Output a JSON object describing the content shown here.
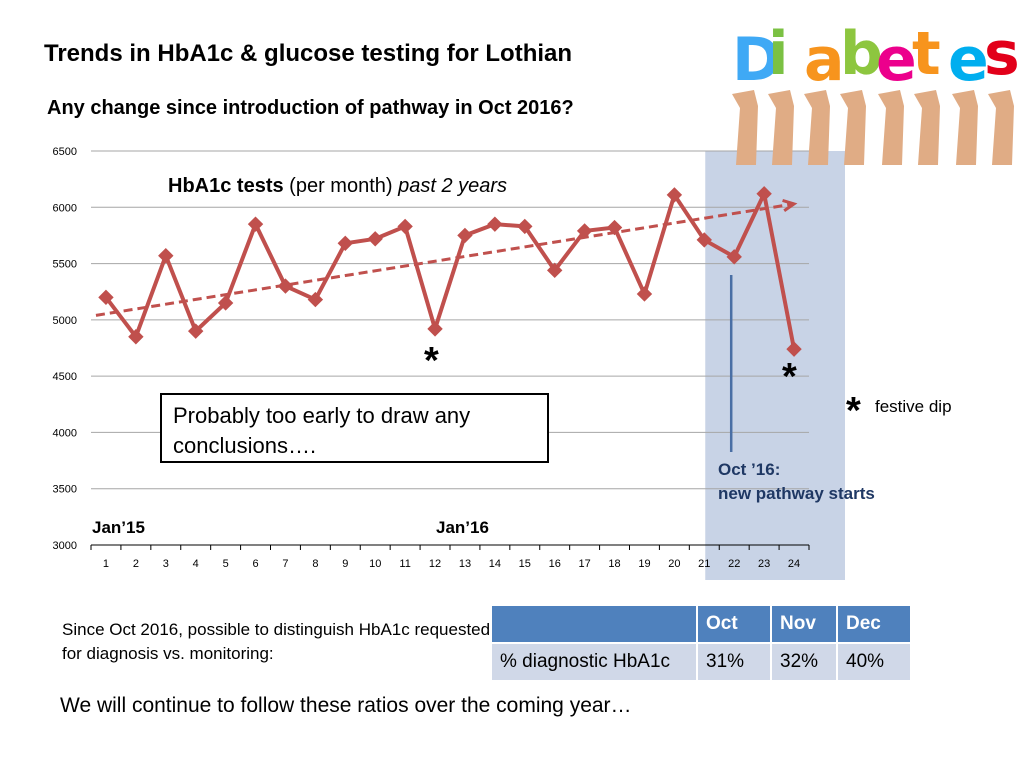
{
  "title": "Trends in HbA1c & glucose testing for Lothian",
  "subtitle": "Any change since introduction of pathway in Oct 2016?",
  "chart_data": {
    "type": "line",
    "title_bold": "HbA1c tests",
    "title_normal": "(per month)",
    "title_italic": "past 2 years",
    "x": [
      1,
      2,
      3,
      4,
      5,
      6,
      7,
      8,
      9,
      10,
      11,
      12,
      13,
      14,
      15,
      16,
      17,
      18,
      19,
      20,
      21,
      22,
      23,
      24
    ],
    "x_tick_labels": [
      "1",
      "2",
      "3",
      "4",
      "5",
      "6",
      "7",
      "8",
      "9",
      "10",
      "11",
      "12",
      "13",
      "14",
      "15",
      "16",
      "17",
      "18",
      "19",
      "20",
      "21",
      "22",
      "23",
      "24"
    ],
    "y_tick_labels": [
      "3000",
      "3500",
      "4000",
      "4500",
      "5000",
      "5500",
      "6000",
      "6500"
    ],
    "ylim": [
      3000,
      6500
    ],
    "grid": true,
    "series": [
      {
        "values": [
          5200,
          4850,
          5570,
          4900,
          5150,
          5850,
          5300,
          5180,
          5680,
          5720,
          5830,
          4920,
          5750,
          5850,
          5830,
          5440,
          5790,
          5820,
          5230,
          6110,
          5710,
          5560,
          6120,
          4740
        ],
        "color": "#c0504d"
      }
    ],
    "trendline": {
      "start": [
        1,
        5040
      ],
      "end": [
        24,
        6030
      ],
      "color": "#c0504d",
      "style": "dashed"
    },
    "highlight_months": [
      22,
      24
    ],
    "highlight_color": "#c8d3e6",
    "x_annotations": [
      {
        "text": "Jan’15"
      },
      {
        "text": "Jan’16"
      }
    ],
    "star_marks": [
      12,
      24
    ],
    "note": "Probably too early to draw any conclusions….",
    "legend_star": "*",
    "legend_text": "festive dip",
    "pathway_marker_month": 22,
    "pathway_label_line1": "Oct ’16:",
    "pathway_label_line2": "new pathway starts"
  },
  "logo": {
    "word": "Diabetes",
    "letters": [
      "D",
      "i",
      "a",
      "b",
      "e",
      "t",
      "e",
      "s"
    ],
    "colors": [
      "#3fa9f5",
      "#7bc143",
      "#f7941d",
      "#8dc63f",
      "#ec008c",
      "#f7941d",
      "#00aeef",
      "#e2001a"
    ]
  },
  "since_text": "Since Oct 2016, possible to distinguish HbA1c requested for diagnosis vs. monitoring:",
  "table": {
    "headers": [
      "",
      "Oct",
      "Nov",
      "Dec"
    ],
    "row": [
      "% diagnostic HbA1c",
      "31%",
      "32%",
      "40%"
    ]
  },
  "follow_text": "We will continue to follow these ratios over the coming year…"
}
